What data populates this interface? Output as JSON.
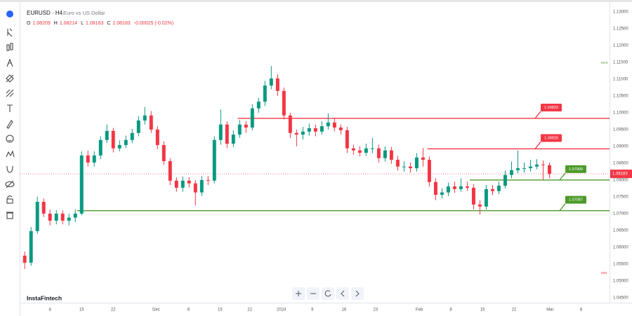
{
  "chart_data": {
    "type": "candlestick",
    "symbol": "EURUSD · H4",
    "description": "Euro vs US Dollar",
    "ohlc_header": [
      {
        "label": "O",
        "value": "1.08209"
      },
      {
        "label": "H",
        "value": "1.08214"
      },
      {
        "label": "L",
        "value": "1.08163"
      },
      {
        "label": "C",
        "value": "1.08183"
      }
    ],
    "change": "-0.00025 (-0.02%)",
    "brand": "InstaFintech",
    "max_label": "MAX",
    "min_label": "MIN",
    "up_color": "#089981",
    "down_color": "#f23645",
    "x": [
      1,
      2,
      3,
      4,
      5,
      6,
      7,
      8,
      9,
      10,
      11,
      12,
      13,
      14,
      15,
      16,
      17,
      18,
      19,
      20,
      21,
      22,
      23,
      24,
      25,
      26,
      27,
      28,
      29,
      30,
      31,
      32,
      33,
      34,
      35,
      36,
      37,
      38,
      39,
      40,
      41,
      42,
      43,
      44,
      45,
      46,
      47,
      48,
      49,
      50,
      51,
      52,
      53,
      54,
      55,
      56,
      57,
      58,
      59,
      60,
      61,
      62,
      63,
      64,
      65,
      66,
      67,
      68,
      69,
      70,
      71,
      72,
      73,
      74,
      75,
      76,
      77,
      78,
      79,
      80,
      81,
      82,
      83,
      84
    ],
    "open": [
      1.0575,
      1.0554,
      1.0648,
      1.0735,
      1.07,
      1.0679,
      1.07,
      1.0679,
      1.0688,
      1.07,
      1.0873,
      1.0852,
      1.0873,
      1.0919,
      1.0946,
      1.0894,
      1.0904,
      1.0919,
      1.094,
      1.0977,
      1.0992,
      1.095,
      1.0904,
      1.0856,
      1.0798,
      1.0777,
      1.0798,
      1.079,
      1.0763,
      1.08,
      1.0798,
      1.0919,
      1.0965,
      1.0908,
      1.0935,
      1.0965,
      1.0956,
      1.1013,
      1.1033,
      1.1081,
      1.1102,
      1.1065,
      1.0992,
      1.094,
      1.0935,
      1.0944,
      1.0954,
      1.0944,
      1.096,
      1.0971,
      1.0956,
      1.0948,
      1.0894,
      1.0888,
      1.0881,
      1.0894,
      1.0894,
      1.0865,
      1.0888,
      1.086,
      1.084,
      1.084,
      1.0835,
      1.0867,
      1.086,
      1.0794,
      1.0756,
      1.0763,
      1.0781,
      1.0773,
      1.0781,
      1.0777,
      1.0727,
      1.0721,
      1.0773,
      1.0767,
      1.0783,
      1.0815,
      1.0829,
      1.0835,
      1.0835,
      1.084,
      1.0846,
      1.0844
    ],
    "high": [
      1.0587,
      1.066,
      1.075,
      1.0745,
      1.0712,
      1.071,
      1.071,
      1.07,
      1.0712,
      1.0885,
      1.0888,
      1.0885,
      1.093,
      1.0965,
      1.0955,
      1.0918,
      1.0932,
      1.0952,
      1.099,
      1.1017,
      1.1005,
      1.096,
      1.0915,
      1.0865,
      1.0808,
      1.081,
      1.0808,
      1.08,
      1.0812,
      1.0812,
      1.093,
      1.101,
      1.0975,
      1.0948,
      1.0978,
      1.0975,
      1.1025,
      1.1045,
      1.1095,
      1.1139,
      1.1115,
      1.1075,
      1.1,
      1.095,
      1.0958,
      1.0968,
      1.0965,
      1.0975,
      1.0998,
      1.0985,
      1.0965,
      1.0958,
      1.0905,
      1.09,
      1.0908,
      1.0925,
      1.0905,
      1.09,
      1.0898,
      1.0872,
      1.0855,
      1.0852,
      1.088,
      1.0895,
      1.087,
      1.0805,
      1.0775,
      1.0792,
      1.0795,
      1.0805,
      1.0795,
      1.0788,
      1.074,
      1.0785,
      1.0785,
      1.0795,
      1.0828,
      1.0855,
      1.0888,
      1.0852,
      1.086,
      1.0862,
      1.0858,
      1.0852
    ],
    "low": [
      1.0535,
      1.0545,
      1.064,
      1.069,
      1.0665,
      1.0668,
      1.0668,
      1.0665,
      1.0675,
      1.0695,
      1.084,
      1.084,
      1.0862,
      1.091,
      1.0882,
      1.0885,
      1.0895,
      1.091,
      1.093,
      1.0965,
      1.094,
      1.0892,
      1.0845,
      1.0785,
      1.0765,
      1.0765,
      1.0778,
      1.0724,
      1.0752,
      1.0785,
      1.079,
      1.0905,
      1.0895,
      1.0898,
      1.0925,
      1.094,
      1.0948,
      1.1,
      1.102,
      1.107,
      1.105,
      1.098,
      1.0925,
      1.09,
      1.092,
      1.0932,
      1.093,
      1.0935,
      1.095,
      1.0945,
      1.0935,
      1.088,
      1.0875,
      1.087,
      1.0872,
      1.088,
      1.0852,
      1.0855,
      1.0848,
      1.0828,
      1.0825,
      1.0822,
      1.0825,
      1.084,
      1.078,
      1.074,
      1.0745,
      1.0752,
      1.0762,
      1.0765,
      1.0768,
      1.0712,
      1.0698,
      1.0712,
      1.0755,
      1.0758,
      1.0775,
      1.0805,
      1.082,
      1.0822,
      1.0825,
      1.0832,
      1.08,
      1.0805
    ],
    "close": [
      1.0554,
      1.0648,
      1.0735,
      1.07,
      1.0679,
      1.07,
      1.0679,
      1.0688,
      1.07,
      1.0873,
      1.0852,
      1.0873,
      1.0919,
      1.0946,
      1.0894,
      1.0904,
      1.0919,
      1.094,
      1.0977,
      1.0992,
      1.095,
      1.0904,
      1.0856,
      1.0798,
      1.0777,
      1.0798,
      1.079,
      1.0763,
      1.08,
      1.0798,
      1.0919,
      1.0965,
      1.0908,
      1.0935,
      1.0965,
      1.0956,
      1.1013,
      1.1033,
      1.1081,
      1.1102,
      1.1065,
      1.0992,
      1.094,
      1.0935,
      1.0944,
      1.0954,
      1.0944,
      1.096,
      1.0971,
      1.0956,
      1.0948,
      1.0894,
      1.0888,
      1.0881,
      1.0894,
      1.0894,
      1.0865,
      1.0888,
      1.086,
      1.084,
      1.084,
      1.0835,
      1.0867,
      1.086,
      1.0794,
      1.0756,
      1.0763,
      1.0781,
      1.0773,
      1.0781,
      1.0777,
      1.0727,
      1.0721,
      1.0773,
      1.0767,
      1.0783,
      1.0815,
      1.0829,
      1.0835,
      1.0835,
      1.084,
      1.0846,
      1.0844,
      1.0818
    ],
    "last_price": 1.08183,
    "levels": [
      {
        "value": 1.09833,
        "x_start": 34.7,
        "color": "#f23645"
      },
      {
        "value": 1.08926,
        "x_start": 64.7,
        "color": "#f23645"
      },
      {
        "value": 1.07999,
        "x_start": 71.4,
        "color": "#4c9a2a"
      },
      {
        "value": 1.07087,
        "x_start": 9.3,
        "color": "#4c9a2a"
      }
    ],
    "xlim": [
      0.2,
      93.5
    ],
    "xticks": [
      {
        "value": 5,
        "label": "8"
      },
      {
        "value": 10,
        "label": "15"
      },
      {
        "value": 15,
        "label": "22"
      },
      {
        "value": 21.8,
        "label": "Dec"
      },
      {
        "value": 26.9,
        "label": "8"
      },
      {
        "value": 31.9,
        "label": "15"
      },
      {
        "value": 36.6,
        "label": "22"
      },
      {
        "value": 41.6,
        "label": "2024"
      },
      {
        "value": 46.5,
        "label": "9"
      },
      {
        "value": 51.5,
        "label": "16"
      },
      {
        "value": 56.5,
        "label": "23"
      },
      {
        "value": 63.4,
        "label": "Feb"
      },
      {
        "value": 68.4,
        "label": "8"
      },
      {
        "value": 73.4,
        "label": "15"
      },
      {
        "value": 78.4,
        "label": "22"
      },
      {
        "value": 84.1,
        "label": "Mar"
      },
      {
        "value": 89,
        "label": "8"
      }
    ],
    "ylim": [
      1.0435,
      1.1325
    ],
    "yticks": [
      {
        "value": 1.13,
        "label": "1.13000"
      },
      {
        "value": 1.125,
        "label": "1.12500"
      },
      {
        "value": 1.12,
        "label": "1.12000"
      },
      {
        "value": 1.115,
        "label": "1.11500"
      },
      {
        "value": 1.11,
        "label": "1.11000"
      },
      {
        "value": 1.105,
        "label": "1.10500"
      },
      {
        "value": 1.1,
        "label": "1.10000"
      },
      {
        "value": 1.095,
        "label": "1.09500"
      },
      {
        "value": 1.09,
        "label": "1.09000"
      },
      {
        "value": 1.085,
        "label": "1.08500"
      },
      {
        "value": 1.08,
        "label": "1.08000"
      },
      {
        "value": 1.075,
        "label": "1.07500"
      },
      {
        "value": 1.07,
        "label": "1.07000"
      },
      {
        "value": 1.065,
        "label": "1.06500"
      },
      {
        "value": 1.06,
        "label": "1.06000"
      },
      {
        "value": 1.055,
        "label": "1.05500"
      },
      {
        "value": 1.05,
        "label": "1.05000"
      },
      {
        "value": 1.045,
        "label": "1.04500"
      }
    ],
    "grid": false
  }
}
